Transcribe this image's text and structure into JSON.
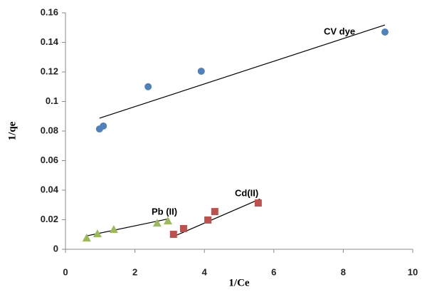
{
  "chart_data": {
    "type": "scatter",
    "x_label": "1/Ce",
    "y_label": "1/qe",
    "xlim": [
      0,
      10
    ],
    "xticks": [
      0,
      2,
      4,
      6,
      8,
      10
    ],
    "ylim": [
      0,
      0.16
    ],
    "yticks": [
      0,
      0.02,
      0.04,
      0.06,
      0.08,
      0.1,
      0.12,
      0.14,
      0.16
    ],
    "grid": false,
    "series": [
      {
        "name": "CV dye",
        "color": "#4f81bd",
        "marker": "circle",
        "x": [
          0.98,
          1.09,
          2.38,
          3.91,
          9.2
        ],
        "values": [
          0.0814,
          0.0834,
          0.11,
          0.1205,
          0.147
        ],
        "trendline": {
          "x": [
            0.98,
            9.2
          ],
          "values": [
            0.0887,
            0.1518
          ]
        }
      },
      {
        "name": "Pb (II)",
        "color": "#9bbb59",
        "marker": "triangle",
        "x": [
          0.61,
          0.92,
          1.39,
          2.64,
          2.95
        ],
        "values": [
          0.0077,
          0.0106,
          0.0135,
          0.0178,
          0.0193
        ],
        "trendline": {
          "x": [
            0.6,
            2.95
          ],
          "values": [
            0.009,
            0.0205
          ]
        }
      },
      {
        "name": "Cd(II)",
        "color": "#c0504d",
        "marker": "square",
        "x": [
          3.11,
          3.4,
          4.1,
          4.3,
          5.55
        ],
        "values": [
          0.0101,
          0.014,
          0.0198,
          0.0255,
          0.0313
        ],
        "trendline": {
          "x": [
            3.1,
            5.6
          ],
          "values": [
            0.0085,
            0.034
          ]
        }
      }
    ]
  }
}
